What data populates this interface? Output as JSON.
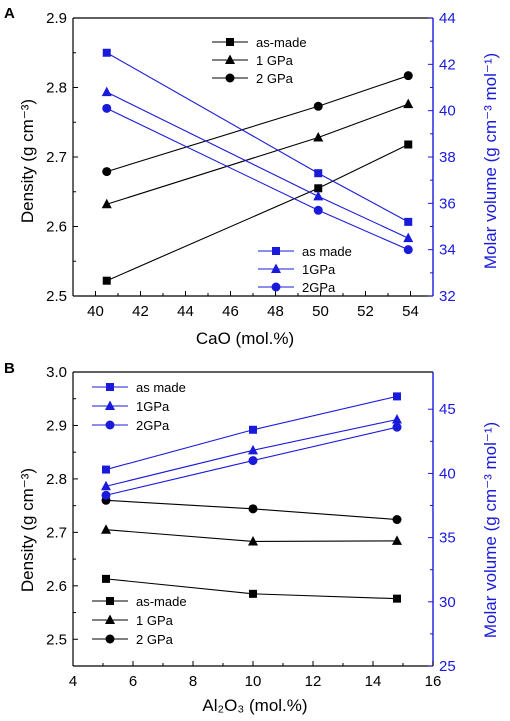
{
  "chart_data": [
    {
      "panel": "A",
      "type": "line",
      "xlabel": "CaO (mol.%)",
      "ylabel": "Density (g cm⁻³)",
      "y2label": "Molar volume (g cm⁻³ mol⁻¹)",
      "xlim": [
        39,
        55
      ],
      "ylim": [
        2.5,
        2.9
      ],
      "y2lim": [
        32,
        44
      ],
      "xticks": [
        "40",
        "42",
        "44",
        "46",
        "48",
        "50",
        "52",
        "54"
      ],
      "yticks": [
        "2.5",
        "2.6",
        "2.7",
        "2.8",
        "2.9"
      ],
      "y2ticks": [
        "32",
        "34",
        "36",
        "38",
        "40",
        "42",
        "44"
      ],
      "colors": {
        "left": "#000000",
        "right": "#1a1adb"
      },
      "legend_left": {
        "placement": "top-center"
      },
      "legend_right": {
        "placement": "bottom-right"
      },
      "series": [
        {
          "name": "as-made",
          "axis": "left",
          "marker": "square",
          "x": [
            40.5,
            49.9,
            53.9
          ],
          "values": [
            2.522,
            2.655,
            2.718
          ]
        },
        {
          "name": "1 GPa",
          "axis": "left",
          "marker": "triangle",
          "x": [
            40.5,
            49.9,
            53.9
          ],
          "values": [
            2.632,
            2.728,
            2.776
          ]
        },
        {
          "name": "2 GPa",
          "axis": "left",
          "marker": "circle",
          "x": [
            40.5,
            49.9,
            53.9
          ],
          "values": [
            2.679,
            2.773,
            2.817
          ]
        },
        {
          "name": "as made",
          "axis": "right",
          "marker": "square",
          "x": [
            40.5,
            49.9,
            53.9
          ],
          "values": [
            42.5,
            37.3,
            35.2
          ]
        },
        {
          "name": "1GPa",
          "axis": "right",
          "marker": "triangle",
          "x": [
            40.5,
            49.9,
            53.9
          ],
          "values": [
            40.8,
            36.3,
            34.5
          ]
        },
        {
          "name": "2GPa",
          "axis": "right",
          "marker": "circle",
          "x": [
            40.5,
            49.9,
            53.9
          ],
          "values": [
            40.1,
            35.7,
            34.0
          ]
        }
      ]
    },
    {
      "panel": "B",
      "type": "line",
      "xlabel": "Al₂O₃ (mol.%)",
      "ylabel": "Density (g cm⁻³)",
      "y2label": "Molar volume (g cm⁻³ mol⁻¹)",
      "xlim": [
        4,
        16
      ],
      "ylim": [
        2.45,
        3.0
      ],
      "y2lim": [
        25,
        47.9
      ],
      "xticks": [
        "4",
        "6",
        "8",
        "10",
        "12",
        "14",
        "16"
      ],
      "yticks": [
        "2.5",
        "2.6",
        "2.7",
        "2.8",
        "2.9",
        "3.0"
      ],
      "y2ticks": [
        "25",
        "30",
        "35",
        "40",
        "45"
      ],
      "colors": {
        "left": "#000000",
        "right": "#1a1adb"
      },
      "legend_left": {
        "placement": "bottom-left"
      },
      "legend_right": {
        "placement": "top-left"
      },
      "series": [
        {
          "name": "as-made",
          "axis": "left",
          "marker": "square",
          "x": [
            5.1,
            10.0,
            14.8
          ],
          "values": [
            2.613,
            2.585,
            2.576
          ]
        },
        {
          "name": "1 GPa",
          "axis": "left",
          "marker": "triangle",
          "x": [
            5.1,
            10.0,
            14.8
          ],
          "values": [
            2.705,
            2.683,
            2.684
          ]
        },
        {
          "name": "2 GPa",
          "axis": "left",
          "marker": "circle",
          "x": [
            5.1,
            10.0,
            14.8
          ],
          "values": [
            2.76,
            2.744,
            2.724
          ]
        },
        {
          "name": "as made",
          "axis": "right",
          "marker": "square",
          "x": [
            5.1,
            10.0,
            14.8
          ],
          "values": [
            40.3,
            43.4,
            46.0
          ]
        },
        {
          "name": "1GPa",
          "axis": "right",
          "marker": "triangle",
          "x": [
            5.1,
            10.0,
            14.8
          ],
          "values": [
            39.0,
            41.8,
            44.2
          ]
        },
        {
          "name": "2GPa",
          "axis": "right",
          "marker": "circle",
          "x": [
            5.1,
            10.0,
            14.8
          ],
          "values": [
            38.3,
            41.0,
            43.6
          ]
        }
      ]
    }
  ]
}
